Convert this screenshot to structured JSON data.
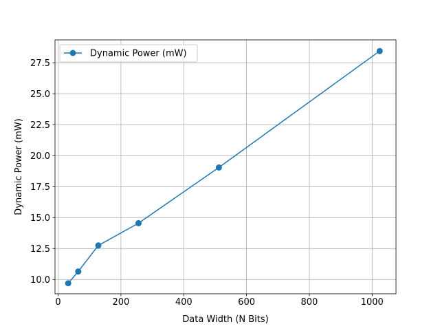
{
  "chart_data": {
    "type": "line",
    "title": "",
    "xlabel": "Data Width (N Bits)",
    "ylabel": "Dynamic Power (mW)",
    "xlim": [
      -10,
      1076
    ],
    "ylim": [
      8.85,
      29.35
    ],
    "xticks": [
      0,
      200,
      400,
      600,
      800,
      1000
    ],
    "yticks": [
      10.0,
      12.5,
      15.0,
      17.5,
      20.0,
      22.5,
      25.0,
      27.5
    ],
    "xtick_labels": [
      "0",
      "200",
      "400",
      "600",
      "800",
      "1000"
    ],
    "ytick_labels": [
      "10.0",
      "12.5",
      "15.0",
      "17.5",
      "20.0",
      "22.5",
      "25.0",
      "27.5"
    ],
    "grid": true,
    "legend_position": "top-left",
    "series": [
      {
        "name": "Dynamic Power (mW)",
        "color": "#1f77b4",
        "marker": "circle",
        "x": [
          32,
          64,
          128,
          256,
          512,
          1024
        ],
        "y": [
          9.7,
          10.65,
          12.75,
          14.55,
          19.05,
          28.45
        ]
      }
    ]
  }
}
